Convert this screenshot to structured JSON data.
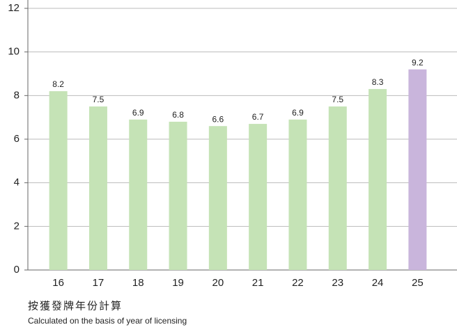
{
  "chart_data": {
    "type": "bar",
    "categories": [
      "16",
      "17",
      "18",
      "19",
      "20",
      "21",
      "22",
      "23",
      "24",
      "25"
    ],
    "values": [
      8.2,
      7.5,
      6.9,
      6.8,
      6.6,
      6.7,
      6.9,
      7.5,
      8.3,
      9.2
    ],
    "colors": [
      "#c5e3b6",
      "#c5e3b6",
      "#c5e3b6",
      "#c5e3b6",
      "#c5e3b6",
      "#c5e3b6",
      "#c5e3b6",
      "#c5e3b6",
      "#c5e3b6",
      "#c9b5dc"
    ],
    "ylim": [
      0,
      12
    ],
    "yticks": [
      0,
      2,
      4,
      6,
      8,
      10,
      12
    ],
    "grid": true,
    "annotations": [
      "按獲發牌年份計算",
      "Calculated on the basis of year of licensing"
    ]
  }
}
